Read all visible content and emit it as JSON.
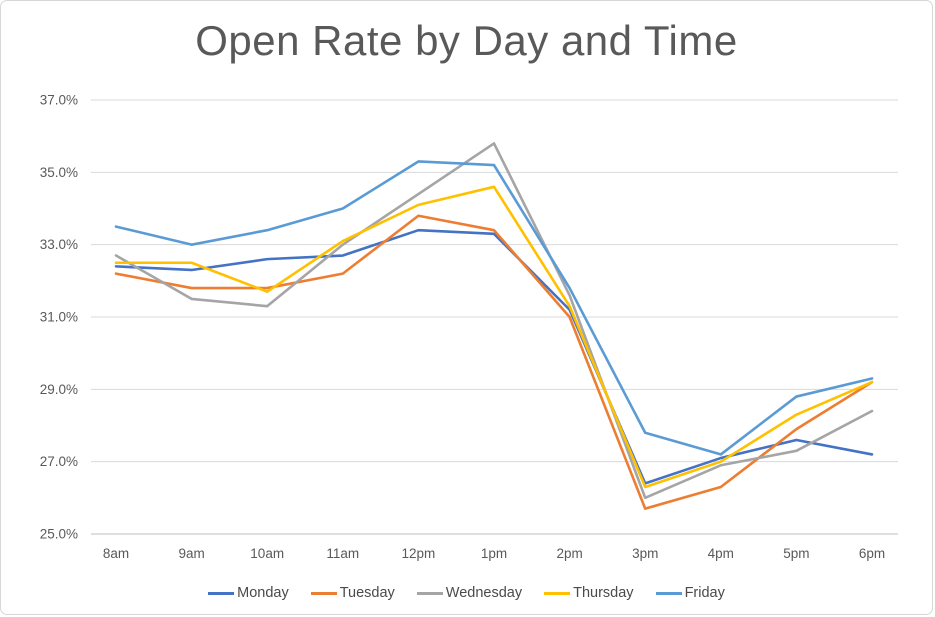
{
  "chart_data": {
    "type": "line",
    "title": "Open Rate by Day and Time",
    "xlabel": "",
    "ylabel": "",
    "categories": [
      "8am",
      "9am",
      "10am",
      "11am",
      "12pm",
      "1pm",
      "2pm",
      "3pm",
      "4pm",
      "5pm",
      "6pm"
    ],
    "series": [
      {
        "name": "Monday",
        "color": "#4472C4",
        "values": [
          32.4,
          32.3,
          32.6,
          32.7,
          33.4,
          33.3,
          31.2,
          26.4,
          27.1,
          27.6,
          27.2
        ]
      },
      {
        "name": "Tuesday",
        "color": "#ED7D31",
        "values": [
          32.2,
          31.8,
          31.8,
          32.2,
          33.8,
          33.4,
          31.0,
          25.7,
          26.3,
          27.9,
          29.2
        ]
      },
      {
        "name": "Wednesday",
        "color": "#A5A5A5",
        "values": [
          32.7,
          31.5,
          31.3,
          33.0,
          34.4,
          35.8,
          31.6,
          26.0,
          26.9,
          27.3,
          28.4
        ]
      },
      {
        "name": "Thursday",
        "color": "#FFC000",
        "values": [
          32.5,
          32.5,
          31.7,
          33.1,
          34.1,
          34.6,
          31.3,
          26.3,
          27.0,
          28.3,
          29.2
        ]
      },
      {
        "name": "Friday",
        "color": "#5B9BD5",
        "values": [
          33.5,
          33.0,
          33.4,
          34.0,
          35.3,
          35.2,
          31.8,
          27.8,
          27.2,
          28.8,
          29.3
        ]
      }
    ],
    "ylim": [
      25,
      37
    ],
    "ytick_step": 2,
    "y_tick_labels": [
      "25.0%",
      "27.0%",
      "29.0%",
      "31.0%",
      "33.0%",
      "35.0%",
      "37.0%"
    ],
    "grid": "horizontal",
    "legend_position": "bottom",
    "colors": {
      "title": "#595959",
      "axis_text": "#595959",
      "gridline": "#D9D9D9",
      "axis_line": "#BFBFBF",
      "border": "#D7D7D7",
      "background": "#FFFFFF"
    }
  }
}
